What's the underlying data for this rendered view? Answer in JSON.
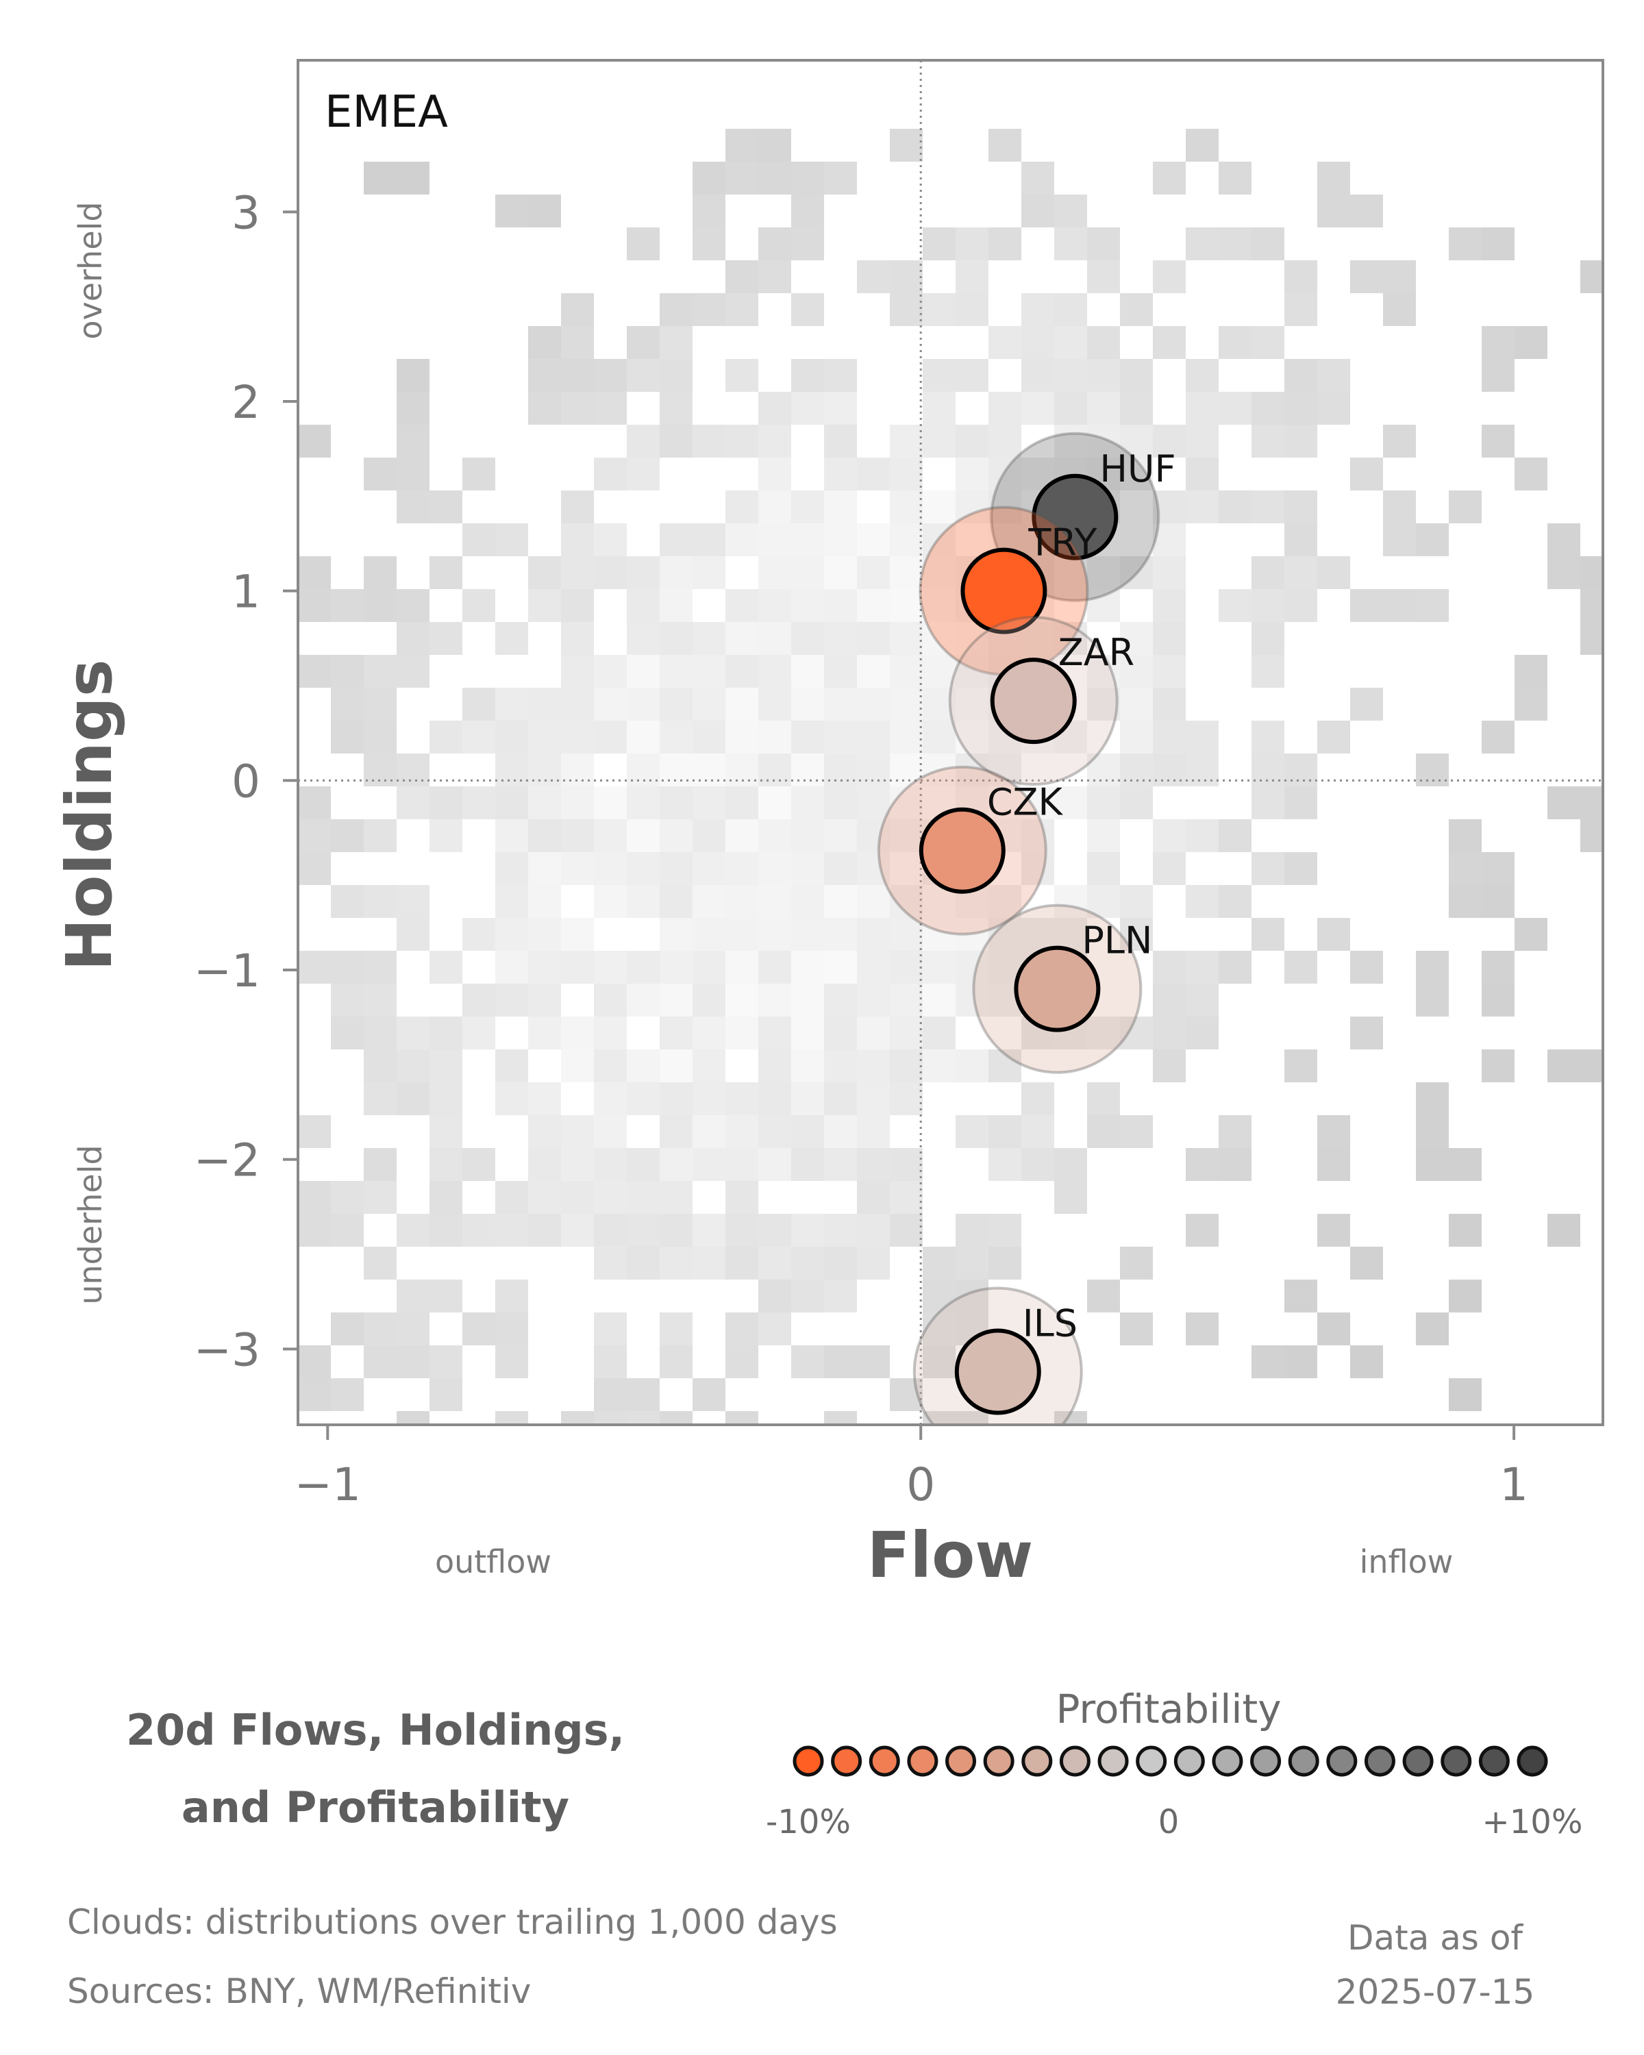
{
  "chart_data": {
    "type": "scatter",
    "panel_label": "EMEA",
    "xlabel": "Flow",
    "ylabel": "Holdings",
    "xlim": [
      -1.05,
      1.15
    ],
    "ylim": [
      -3.4,
      3.8
    ],
    "x_ticks": [
      {
        "value": -1,
        "label": "−1"
      },
      {
        "value": 0,
        "label": "0"
      },
      {
        "value": 1,
        "label": "1"
      }
    ],
    "y_ticks": [
      {
        "value": 3,
        "label": "3"
      },
      {
        "value": 2,
        "label": "2"
      },
      {
        "value": 1,
        "label": "1"
      },
      {
        "value": 0,
        "label": "0"
      },
      {
        "value": -1,
        "label": "−1"
      },
      {
        "value": -2,
        "label": "−2"
      },
      {
        "value": -3,
        "label": "−3"
      }
    ],
    "x_side_labels": {
      "left": "outflow",
      "right": "inflow"
    },
    "y_side_labels": {
      "top": "overheld",
      "bottom": "underheld"
    },
    "reference_lines": {
      "x": 0,
      "y": 0,
      "style": "dotted"
    },
    "background": "2D histogram cloud (grey) of trailing 1,000-day distribution",
    "points": [
      {
        "label": "HUF",
        "x": 0.26,
        "y": 1.39,
        "color": "#5a5a5a"
      },
      {
        "label": "TRY",
        "x": 0.14,
        "y": 1.0,
        "color": "#ff5f22"
      },
      {
        "label": "ZAR",
        "x": 0.19,
        "y": 0.42,
        "color": "#d6bcb4"
      },
      {
        "label": "CZK",
        "x": 0.07,
        "y": -0.37,
        "color": "#e89476"
      },
      {
        "label": "PLN",
        "x": 0.23,
        "y": -1.1,
        "color": "#d9aa98"
      },
      {
        "label": "ILS",
        "x": 0.13,
        "y": -3.12,
        "color": "#d6bbb1"
      }
    ],
    "legend": {
      "title": "Profitability",
      "min_label": "-10%",
      "mid_label": "0",
      "max_label": "+10%",
      "colors": [
        "#ff5f22",
        "#f86e3c",
        "#f17d52",
        "#ea8a66",
        "#e2977b",
        "#daa48e",
        "#d3b1a3",
        "#cfbbb3",
        "#cdc5c1",
        "#c9c9c9",
        "#bcbcbc",
        "#aeaeae",
        "#a0a0a0",
        "#939393",
        "#858585",
        "#787878",
        "#6a6a6a",
        "#5d5d5d",
        "#505050",
        "#434343"
      ]
    }
  },
  "footer": {
    "title_line1": "20d Flows, Holdings,",
    "title_line2": "and Profitability",
    "clouds_note": "Clouds:  distributions over trailing 1,000 days",
    "sources_note": "Sources:  BNY, WM/Refinitiv",
    "data_as_of_label": "Data as of",
    "data_as_of_date": "2025-07-15"
  }
}
